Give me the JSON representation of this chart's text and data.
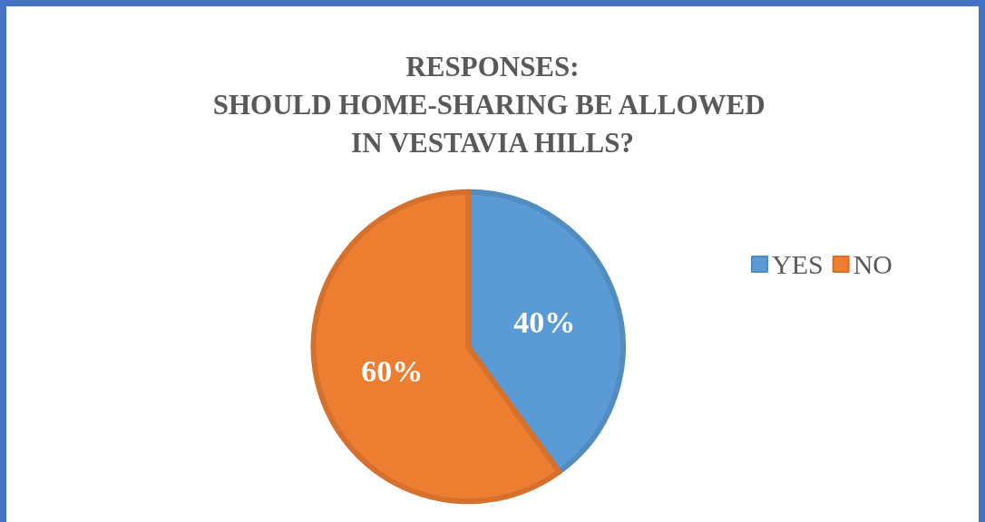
{
  "chart_data": {
    "type": "pie",
    "title": "RESPONSES:\nSHOULD HOME-SHARING BE ALLOWED IN VESTAVIA HILLS?",
    "categories": [
      "YES",
      "NO"
    ],
    "values": [
      40,
      60
    ],
    "colors": [
      "#5b9bd5",
      "#ed7d31"
    ],
    "value_labels": [
      "40%",
      "60%"
    ],
    "legend": "right"
  }
}
